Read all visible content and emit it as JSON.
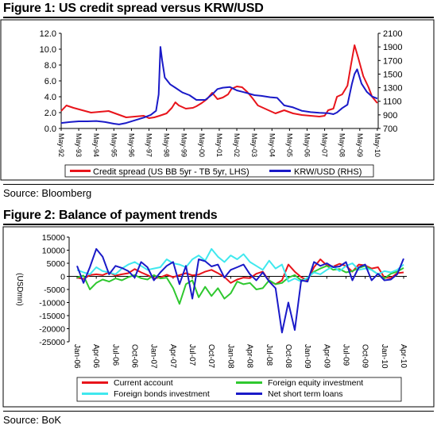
{
  "fig1": {
    "title": "Figure 1: US credit spread versus KRW/USD",
    "source": "Source: Bloomberg"
  },
  "fig2": {
    "title": "Figure 2: Balance of payment trends",
    "source": "Source: BoK"
  },
  "chart_data": [
    {
      "type": "line",
      "title": "Figure 1: US credit spread versus KRW/USD",
      "x_ticks": [
        "May-92",
        "May-93",
        "May-94",
        "May-95",
        "May-96",
        "May-97",
        "May-98",
        "May-99",
        "May-00",
        "May-01",
        "May-02",
        "May-03",
        "May-04",
        "May-05",
        "May-06",
        "May-07",
        "May-08",
        "May-09",
        "May-10"
      ],
      "y_left": {
        "ticks": [
          "0.0",
          "2.0",
          "4.0",
          "6.0",
          "8.0",
          "10.0",
          "12.0"
        ],
        "range": [
          0,
          12
        ]
      },
      "y_right": {
        "ticks": [
          "700",
          "900",
          "1100",
          "1300",
          "1500",
          "1700",
          "1900",
          "2100"
        ],
        "range": [
          700,
          2100
        ]
      },
      "grid": false,
      "legend_position": "bottom",
      "series": [
        {
          "name": "Credit spread (US BB 5yr - TB 5yr, LHS)",
          "axis": "left",
          "color": "#e8141b",
          "x": [
            1992.3,
            1992.6,
            1993.0,
            1993.5,
            1994.0,
            1994.5,
            1995.0,
            1995.5,
            1996.0,
            1996.5,
            1997.0,
            1997.3,
            1997.6,
            1997.9,
            1998.3,
            1998.6,
            1998.8,
            1999.0,
            1999.4,
            1999.8,
            2000.0,
            2000.3,
            2000.6,
            2000.9,
            2001.2,
            2001.5,
            2001.8,
            2002.0,
            2002.3,
            2002.6,
            2002.9,
            2003.2,
            2003.5,
            2004.0,
            2004.5,
            2005.0,
            2005.5,
            2006.0,
            2006.5,
            2007.0,
            2007.3,
            2007.5,
            2007.8,
            2008.0,
            2008.3,
            2008.6,
            2008.8,
            2009.0,
            2009.2,
            2009.5,
            2009.8,
            2010.0,
            2010.3
          ],
          "y": [
            2.2,
            2.9,
            2.6,
            2.3,
            2.0,
            2.1,
            2.2,
            1.8,
            1.4,
            1.5,
            1.6,
            1.3,
            1.4,
            1.6,
            1.9,
            2.6,
            3.3,
            2.9,
            2.5,
            2.6,
            2.8,
            3.2,
            3.7,
            4.5,
            3.7,
            3.9,
            4.3,
            5.0,
            5.3,
            5.2,
            4.6,
            3.8,
            2.9,
            2.4,
            1.9,
            2.3,
            1.9,
            1.7,
            1.6,
            1.5,
            1.6,
            2.3,
            2.5,
            4.0,
            4.3,
            5.4,
            8.0,
            10.5,
            9.0,
            6.6,
            5.2,
            4.0,
            3.2
          ]
        },
        {
          "name": "KRW/USD (RHS)",
          "axis": "right",
          "color": "#1a1ac8",
          "x": [
            1992.3,
            1992.8,
            1993.3,
            1993.8,
            1994.3,
            1994.8,
            1995.3,
            1995.6,
            1996.0,
            1996.5,
            1997.0,
            1997.4,
            1997.7,
            1997.85,
            1997.95,
            1998.05,
            1998.2,
            1998.5,
            1998.8,
            1999.2,
            1999.6,
            2000.0,
            2000.5,
            2000.9,
            2001.2,
            2001.5,
            2001.9,
            2002.3,
            2002.6,
            2002.9,
            2003.3,
            2003.7,
            2004.2,
            2004.6,
            2005.0,
            2005.5,
            2006.0,
            2006.5,
            2007.0,
            2007.5,
            2007.8,
            2008.0,
            2008.3,
            2008.6,
            2008.85,
            2009.0,
            2009.15,
            2009.4,
            2009.7,
            2010.0,
            2010.3
          ],
          "y": [
            780,
            795,
            805,
            805,
            810,
            795,
            770,
            760,
            780,
            820,
            860,
            900,
            960,
            1200,
            1900,
            1700,
            1450,
            1350,
            1300,
            1230,
            1190,
            1120,
            1120,
            1200,
            1280,
            1300,
            1310,
            1260,
            1240,
            1220,
            1190,
            1180,
            1160,
            1150,
            1040,
            1010,
            960,
            940,
            930,
            925,
            910,
            935,
            1000,
            1050,
            1350,
            1500,
            1570,
            1360,
            1240,
            1170,
            1140
          ]
        }
      ]
    },
    {
      "type": "line",
      "title": "Figure 2: Balance of payment trends",
      "ylabel": "(USDmn)",
      "categories": [
        "Jan-06",
        "Feb-06",
        "Mar-06",
        "Apr-06",
        "May-06",
        "Jun-06",
        "Jul-06",
        "Aug-06",
        "Sep-06",
        "Oct-06",
        "Nov-06",
        "Dec-06",
        "Jan-07",
        "Feb-07",
        "Mar-07",
        "Apr-07",
        "May-07",
        "Jun-07",
        "Jul-07",
        "Aug-07",
        "Sep-07",
        "Oct-07",
        "Nov-07",
        "Dec-07",
        "Jan-08",
        "Feb-08",
        "Mar-08",
        "Apr-08",
        "May-08",
        "Jun-08",
        "Jul-08",
        "Aug-08",
        "Sep-08",
        "Oct-08",
        "Nov-08",
        "Dec-08",
        "Jan-09",
        "Feb-09",
        "Mar-09",
        "Apr-09",
        "May-09",
        "Jun-09",
        "Jul-09",
        "Aug-09",
        "Sep-09",
        "Oct-09",
        "Nov-09",
        "Dec-09",
        "Jan-10",
        "Feb-10",
        "Mar-10",
        "Apr-10"
      ],
      "x_tick_labels": [
        "Jan-06",
        "Apr-06",
        "Jul-06",
        "Oct-06",
        "Jan-07",
        "Apr-07",
        "Jul-07",
        "Oct-07",
        "Jan-08",
        "Apr-08",
        "Jul-08",
        "Oct-08",
        "Jan-09",
        "Apr-09",
        "Jul-09",
        "Oct-09",
        "Jan-10",
        "Apr-10"
      ],
      "y_ticks": [
        "-25000",
        "-20000",
        "-15000",
        "-10000",
        "-5000",
        "0",
        "5000",
        "10000",
        "15000"
      ],
      "ylim": [
        -25000,
        15000
      ],
      "grid": false,
      "legend_position": "bottom",
      "series": [
        {
          "name": "Current account",
          "color": "#e8141b",
          "values": [
            -500,
            -1000,
            500,
            800,
            500,
            1500,
            300,
            800,
            1200,
            2800,
            1500,
            500,
            -800,
            -400,
            600,
            -300,
            500,
            1200,
            400,
            700,
            1800,
            2500,
            1200,
            -200,
            -2500,
            -1200,
            -500,
            -700,
            1000,
            1800,
            -1800,
            -3000,
            -1500,
            4500,
            1800,
            -300,
            -1500,
            3500,
            6500,
            4200,
            3800,
            4800,
            4000,
            1800,
            4500,
            4200,
            3000,
            3500,
            -500,
            -600,
            1200,
            1500
          ]
        },
        {
          "name": "Foreign equity investment",
          "color": "#2fc82f",
          "values": [
            -500,
            300,
            -5000,
            -2500,
            -1200,
            -2000,
            -800,
            -1500,
            -300,
            500,
            -700,
            -1200,
            500,
            -800,
            -500,
            -4500,
            -10500,
            -3000,
            -1500,
            -8000,
            -4000,
            -7500,
            -4500,
            -8500,
            -6500,
            -2000,
            -3000,
            -2500,
            -5000,
            -4500,
            -1500,
            -3000,
            -2500,
            -500,
            500,
            -1500,
            -800,
            1800,
            3000,
            4000,
            2500,
            2800,
            1500,
            2000,
            3200,
            4000,
            2500,
            800,
            -800,
            1000,
            1800,
            3200
          ]
        },
        {
          "name": "Foreign bonds investment",
          "color": "#40e8ee",
          "values": [
            2500,
            1500,
            800,
            3500,
            2000,
            1500,
            800,
            3000,
            4500,
            5500,
            4000,
            2500,
            3000,
            3500,
            6500,
            5000,
            4500,
            3500,
            6500,
            8000,
            6000,
            10500,
            7500,
            5500,
            8000,
            6500,
            8500,
            5500,
            4000,
            2500,
            6000,
            3000,
            4500,
            -2000,
            -800,
            -2000,
            -500,
            1500,
            800,
            2500,
            3800,
            2000,
            4000,
            5000,
            2500,
            3000,
            2500,
            800,
            2000,
            1500,
            2500,
            4500
          ]
        },
        {
          "name": "Net short term loans",
          "color": "#1a1ac8",
          "values": [
            4000,
            -2500,
            3500,
            10500,
            7500,
            800,
            4000,
            3200,
            2000,
            -500,
            5500,
            3500,
            -1500,
            1500,
            4000,
            5500,
            -3000,
            4000,
            -8500,
            6500,
            5800,
            3800,
            4500,
            -500,
            2500,
            3500,
            4500,
            800,
            -1500,
            1500,
            -2000,
            -4500,
            -21500,
            -10000,
            -20500,
            -1500,
            -2000,
            5500,
            4000,
            5000,
            3500,
            3800,
            5500,
            -1500,
            3500,
            4500,
            -1500,
            1000,
            -1500,
            -1200,
            800,
            6800
          ]
        }
      ]
    }
  ]
}
